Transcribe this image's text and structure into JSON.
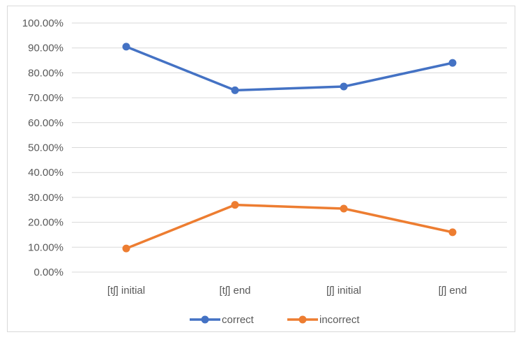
{
  "chart_data": {
    "type": "line",
    "categories": [
      "[tʃ] initial",
      "[tʃ] end",
      "[ʃ] initial",
      "[ʃ] end"
    ],
    "series": [
      {
        "name": "correct",
        "values": [
          90.5,
          73.0,
          74.5,
          84.0
        ],
        "color": "#4472c4"
      },
      {
        "name": "incorrect",
        "values": [
          9.5,
          27.0,
          25.5,
          16.0
        ],
        "color": "#ed7d31"
      }
    ],
    "title": "",
    "xlabel": "",
    "ylabel": "",
    "ylim": [
      0,
      100
    ],
    "yticks": [
      "0.00%",
      "10.00%",
      "20.00%",
      "30.00%",
      "40.00%",
      "50.00%",
      "60.00%",
      "70.00%",
      "80.00%",
      "90.00%",
      "100.00%"
    ],
    "grid": true,
    "legend": "bottom"
  }
}
